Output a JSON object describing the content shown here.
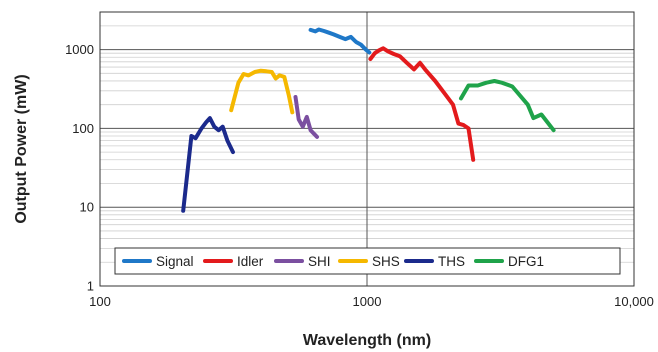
{
  "chart_data": {
    "type": "line",
    "title": "",
    "xlabel": "Wavelength (nm)",
    "ylabel": "Output Power (mW)",
    "x_scale": "log",
    "y_scale": "log",
    "xlim": [
      100,
      10000
    ],
    "ylim": [
      1,
      3000
    ],
    "x_ticks": [
      {
        "value": 100,
        "label": "100"
      },
      {
        "value": 1000,
        "label": "1000"
      },
      {
        "value": 10000,
        "label": "10,000"
      }
    ],
    "y_ticks": [
      {
        "value": 1,
        "label": "1"
      },
      {
        "value": 10,
        "label": "10"
      },
      {
        "value": 100,
        "label": "100"
      },
      {
        "value": 1000,
        "label": "1000"
      }
    ],
    "grid": true,
    "legend_position": "bottom",
    "series": [
      {
        "name": "Signal",
        "color": "#1f78c8",
        "points": [
          [
            615,
            1780
          ],
          [
            640,
            1700
          ],
          [
            660,
            1800
          ],
          [
            690,
            1720
          ],
          [
            720,
            1640
          ],
          [
            750,
            1560
          ],
          [
            790,
            1450
          ],
          [
            830,
            1360
          ],
          [
            870,
            1450
          ],
          [
            910,
            1250
          ],
          [
            950,
            1150
          ],
          [
            990,
            1000
          ],
          [
            1020,
            920
          ]
        ]
      },
      {
        "name": "Idler",
        "color": "#e31a1c",
        "points": [
          [
            1030,
            760
          ],
          [
            1070,
            900
          ],
          [
            1110,
            980
          ],
          [
            1150,
            1040
          ],
          [
            1200,
            950
          ],
          [
            1260,
            880
          ],
          [
            1330,
            820
          ],
          [
            1410,
            680
          ],
          [
            1500,
            560
          ],
          [
            1580,
            680
          ],
          [
            1650,
            560
          ],
          [
            1800,
            400
          ],
          [
            1950,
            280
          ],
          [
            2100,
            200
          ],
          [
            2200,
            115
          ],
          [
            2300,
            110
          ],
          [
            2400,
            100
          ],
          [
            2500,
            40
          ]
        ]
      },
      {
        "name": "SHI",
        "color": "#7b4fa0",
        "points": [
          [
            540,
            250
          ],
          [
            555,
            130
          ],
          [
            575,
            105
          ],
          [
            595,
            140
          ],
          [
            615,
            95
          ],
          [
            650,
            78
          ]
        ]
      },
      {
        "name": "SHS",
        "color": "#f5b800",
        "points": [
          [
            310,
            170
          ],
          [
            330,
            380
          ],
          [
            345,
            490
          ],
          [
            360,
            470
          ],
          [
            380,
            520
          ],
          [
            400,
            540
          ],
          [
            420,
            530
          ],
          [
            440,
            520
          ],
          [
            455,
            430
          ],
          [
            470,
            470
          ],
          [
            490,
            450
          ],
          [
            510,
            260
          ],
          [
            525,
            160
          ]
        ]
      },
      {
        "name": "THS",
        "color": "#1b2a8c",
        "points": [
          [
            205,
            9
          ],
          [
            220,
            80
          ],
          [
            228,
            75
          ],
          [
            240,
            100
          ],
          [
            250,
            120
          ],
          [
            258,
            135
          ],
          [
            268,
            105
          ],
          [
            278,
            95
          ],
          [
            288,
            105
          ],
          [
            300,
            70
          ],
          [
            315,
            50
          ]
        ]
      },
      {
        "name": "DFG1",
        "color": "#1fa34a",
        "points": [
          [
            2250,
            240
          ],
          [
            2400,
            350
          ],
          [
            2600,
            350
          ],
          [
            2800,
            380
          ],
          [
            3000,
            400
          ],
          [
            3200,
            380
          ],
          [
            3500,
            340
          ],
          [
            4000,
            200
          ],
          [
            4200,
            135
          ],
          [
            4500,
            150
          ],
          [
            5000,
            95
          ]
        ]
      }
    ]
  }
}
